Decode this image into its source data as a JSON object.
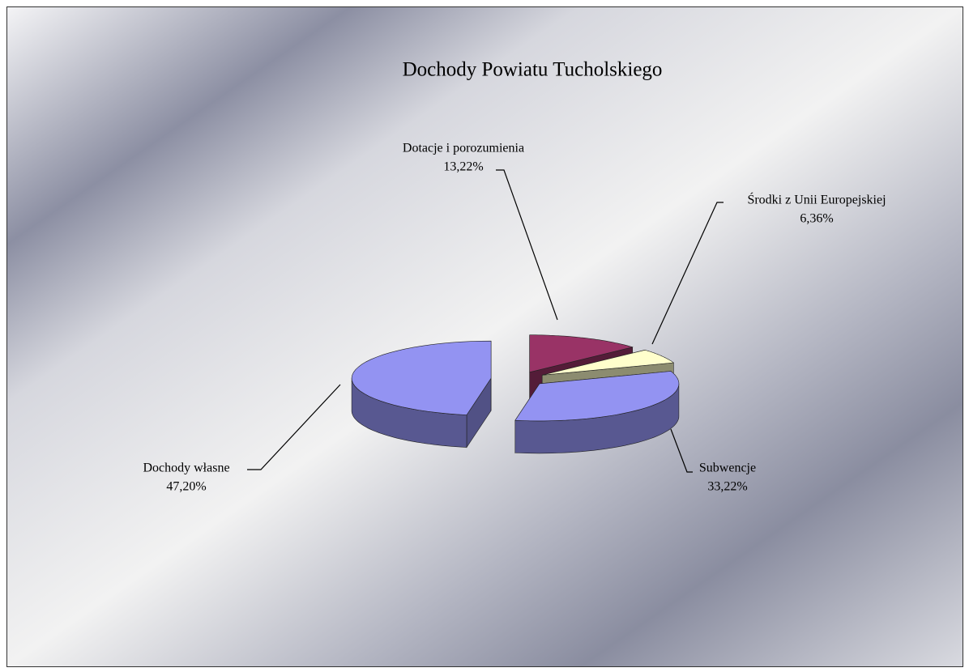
{
  "chart_data": {
    "type": "pie3d",
    "title": "Dochody Powiatu Tucholskiego",
    "categories": [
      "Dochody własne",
      "Dotacje i porozumienia",
      "Środki z Unii Europejskiej",
      "Subwencje"
    ],
    "values": [
      47.2,
      13.22,
      6.36,
      33.22
    ],
    "value_labels": [
      "47,20%",
      "13,22%",
      "6,36%",
      "33,22%"
    ],
    "colors": [
      "#9393f2",
      "#993366",
      "#ffffcc",
      "#9393f2"
    ]
  }
}
